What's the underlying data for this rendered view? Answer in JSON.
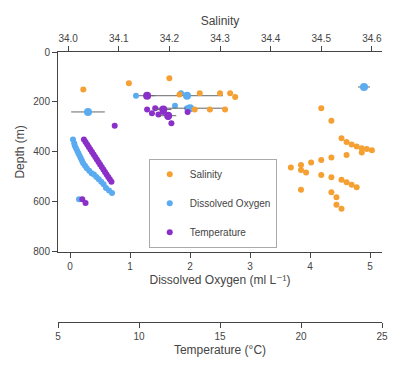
{
  "chart_data": {
    "type": "scatter",
    "xlabel": "Dissolved Oxygen (ml L⁻¹)",
    "x2label": "Temperature (°C)",
    "x3label": "Salinity",
    "ylabel": "Depth (m)",
    "xlim": [
      -0.2,
      5.2
    ],
    "xticks": [
      0,
      1,
      2,
      3,
      4,
      5
    ],
    "x2lim": [
      5,
      25
    ],
    "x2ticks": [
      5,
      10,
      15,
      20,
      25
    ],
    "x3lim": [
      33.98,
      34.62
    ],
    "x3ticks": [
      {
        "value": 34.0,
        "label": "34.0"
      },
      34.1,
      34.2,
      34.3,
      34.4,
      34.5,
      34.6
    ],
    "ylim": [
      800,
      0
    ],
    "yticks": [
      0,
      200,
      400,
      600,
      800
    ],
    "grid": false,
    "legend": "lower left",
    "series": [
      {
        "name": "Salinity",
        "color": "#f5a032",
        "axis": "x3",
        "x": [
          34.03,
          34.12,
          34.2,
          34.22,
          34.25,
          34.26,
          34.28,
          34.3,
          34.31,
          34.32,
          34.33,
          34.5,
          34.52,
          34.54,
          34.55,
          34.56,
          34.57,
          34.58,
          34.59,
          34.6,
          34.58,
          34.55,
          34.52,
          34.5,
          34.48,
          34.46,
          34.44,
          34.46,
          34.47,
          34.5,
          34.52,
          34.54,
          34.55,
          34.56,
          34.57,
          34.46,
          34.52,
          34.53,
          34.53,
          34.54
        ],
        "values": [
          150,
          125,
          105,
          170,
          230,
          165,
          230,
          165,
          230,
          165,
          180,
          225,
          275,
          345,
          360,
          370,
          378,
          385,
          388,
          393,
          402,
          412,
          422,
          432,
          442,
          452,
          462,
          472,
          482,
          492,
          502,
          512,
          522,
          532,
          542,
          552,
          562,
          582,
          612,
          628
        ]
      },
      {
        "name": "Dissolved Oxygen",
        "color": "#5aabf0",
        "axis": "x",
        "x": [
          0.05,
          0.07,
          0.08,
          0.1,
          0.12,
          0.14,
          0.16,
          0.18,
          0.2,
          0.22,
          0.25,
          0.28,
          0.32,
          0.36,
          0.4,
          0.44,
          0.48,
          0.52,
          0.56,
          0.6,
          0.65,
          0.7,
          0.15,
          1.1,
          1.85,
          1.75,
          1.95,
          4.9,
          0.3,
          1.95,
          2.0,
          4.9
        ],
        "values": [
          350,
          365,
          375,
          385,
          395,
          405,
          415,
          425,
          435,
          445,
          455,
          465,
          475,
          485,
          490,
          500,
          510,
          520,
          530,
          545,
          555,
          565,
          590,
          175,
          165,
          215,
          225,
          140,
          240,
          175,
          225,
          140
        ],
        "x_error": [
          null,
          null,
          null,
          null,
          null,
          null,
          null,
          null,
          null,
          null,
          null,
          null,
          null,
          null,
          null,
          null,
          null,
          null,
          null,
          null,
          null,
          null,
          null,
          null,
          null,
          null,
          null,
          null,
          0.28,
          0.6,
          0.6,
          0.1
        ]
      },
      {
        "name": "Temperature",
        "color": "#8b2fc9",
        "axis": "x2",
        "x": [
          6.6,
          6.7,
          6.8,
          6.9,
          7.0,
          7.1,
          7.2,
          7.3,
          7.4,
          7.5,
          7.6,
          7.7,
          7.8,
          7.9,
          8.0,
          8.1,
          8.2,
          8.3,
          6.5,
          6.7,
          10.5,
          10.8,
          11.0,
          11.2,
          11.5,
          11.8,
          12.0,
          13.0,
          8.5,
          10.5,
          11.5,
          11.8
        ],
        "values": [
          350,
          360,
          370,
          380,
          390,
          400,
          410,
          420,
          430,
          440,
          450,
          460,
          470,
          480,
          490,
          500,
          510,
          520,
          590,
          605,
          230,
          245,
          225,
          250,
          240,
          260,
          285,
          240,
          295,
          175,
          230,
          255
        ],
        "x_error": [
          null,
          null,
          null,
          null,
          null,
          null,
          null,
          null,
          null,
          null,
          null,
          null,
          null,
          null,
          null,
          null,
          null,
          null,
          null,
          null,
          null,
          null,
          null,
          null,
          null,
          null,
          null,
          null,
          null,
          0.5,
          0.5,
          0.5
        ]
      }
    ]
  }
}
